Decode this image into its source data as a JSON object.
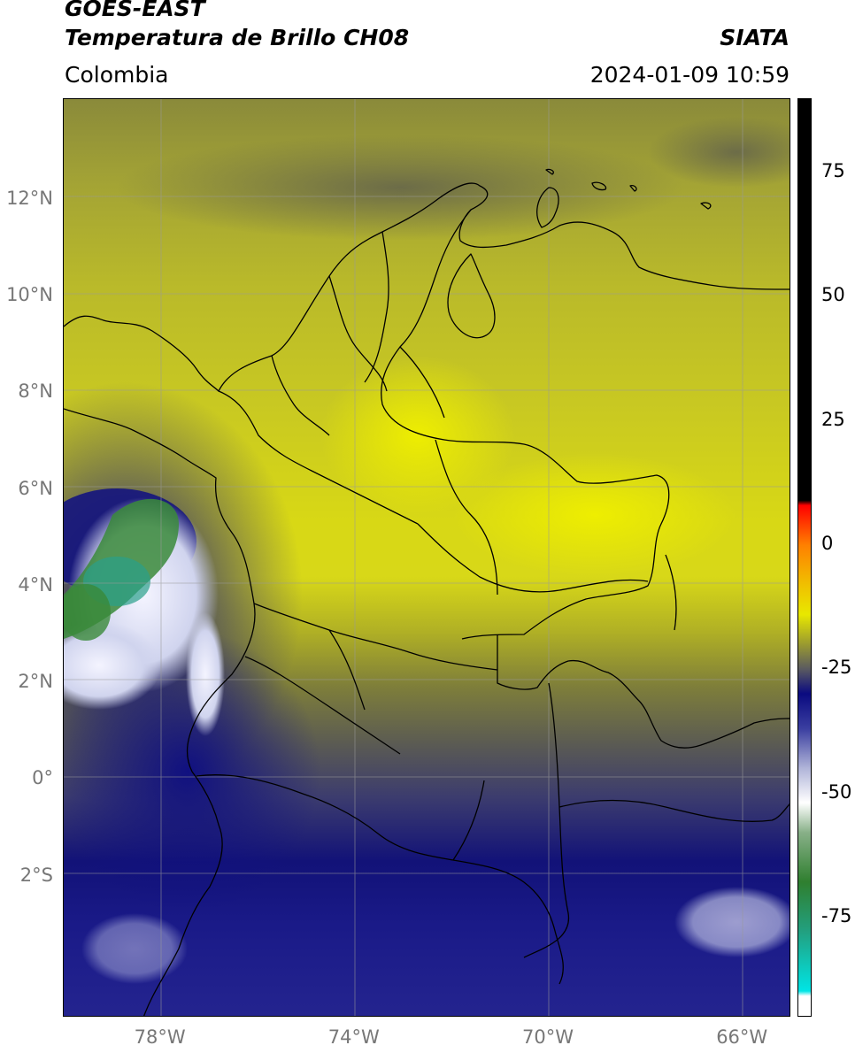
{
  "header": {
    "satellite": "GOES-EAST",
    "product": "Temperatura de Brillo CH08",
    "organization": "SIATA",
    "region": "Colombia",
    "datetime": "2024-01-09 10:59"
  },
  "axes": {
    "lat_labels": [
      {
        "text": "12°N",
        "value": 12
      },
      {
        "text": "10°N",
        "value": 10
      },
      {
        "text": "8°N",
        "value": 8
      },
      {
        "text": "6°N",
        "value": 6
      },
      {
        "text": "4°N",
        "value": 4
      },
      {
        "text": "2°N",
        "value": 2
      },
      {
        "text": "0°",
        "value": 0
      },
      {
        "text": "2°S",
        "value": -2
      }
    ],
    "lon_labels": [
      {
        "text": "78°W",
        "value": -78
      },
      {
        "text": "74°W",
        "value": -74
      },
      {
        "text": "70°W",
        "value": -70
      },
      {
        "text": "66°W",
        "value": -66
      }
    ],
    "lat_range": [
      -4.9,
      14.1
    ],
    "lon_range": [
      -80.0,
      -65.0
    ],
    "grid": true
  },
  "colorbar": {
    "tick_labels": [
      {
        "text": "75",
        "value": 75
      },
      {
        "text": "50",
        "value": 50
      },
      {
        "text": "25",
        "value": 25
      },
      {
        "text": "0",
        "value": 0
      },
      {
        "text": "-25",
        "value": -25
      },
      {
        "text": "-50",
        "value": -50
      },
      {
        "text": "-75",
        "value": -75
      }
    ],
    "range": [
      -95,
      90
    ],
    "stops": [
      {
        "value": -95,
        "color": "#ffffff"
      },
      {
        "value": -91,
        "color": "#ffffff"
      },
      {
        "value": -90,
        "color": "#00e5e5"
      },
      {
        "value": -78,
        "color": "#22a080"
      },
      {
        "value": -68,
        "color": "#2f7f2f"
      },
      {
        "value": -58,
        "color": "#88b088"
      },
      {
        "value": -52,
        "color": "#ffffff"
      },
      {
        "value": -45,
        "color": "#b0b4d8"
      },
      {
        "value": -37,
        "color": "#3a3ea0"
      },
      {
        "value": -30,
        "color": "#0a0a80"
      },
      {
        "value": -25,
        "color": "#5a5a60"
      },
      {
        "value": -20,
        "color": "#9a9a30"
      },
      {
        "value": -14,
        "color": "#e8e800"
      },
      {
        "value": -8,
        "color": "#f0c000"
      },
      {
        "value": 0,
        "color": "#ff8000"
      },
      {
        "value": 8,
        "color": "#ff0000"
      },
      {
        "value": 9,
        "color": "#000000"
      },
      {
        "value": 90,
        "color": "#000000"
      }
    ]
  }
}
